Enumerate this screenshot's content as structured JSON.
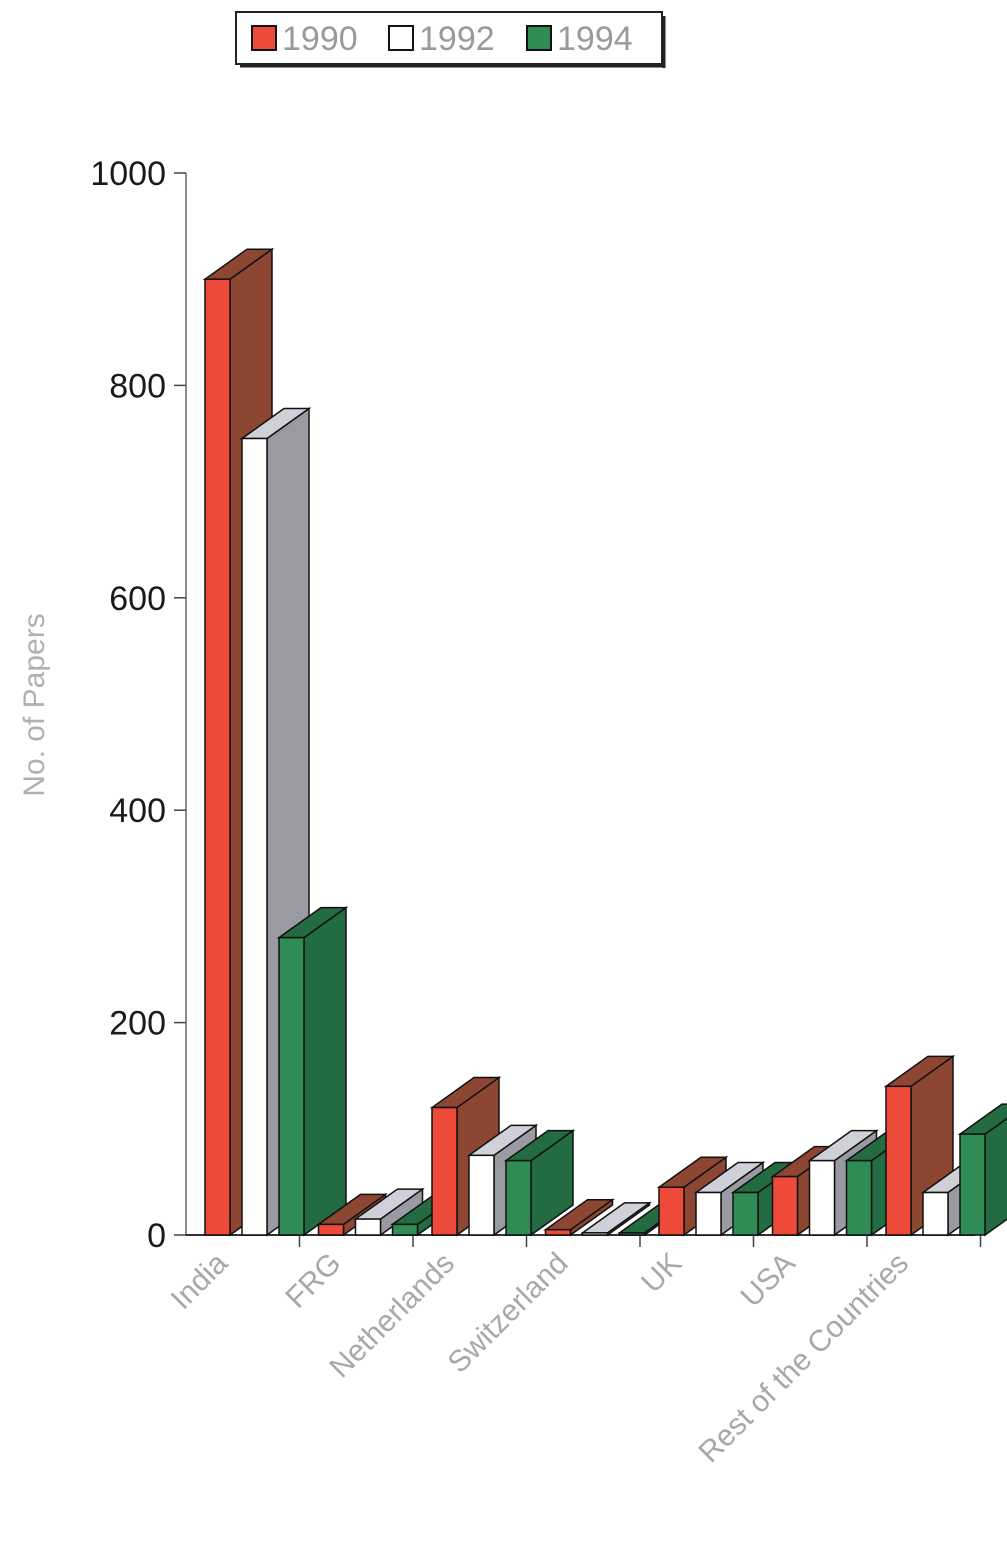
{
  "chart_data": {
    "type": "bar",
    "categories": [
      "India",
      "FRG",
      "Netherlands",
      "Switzerland",
      "UK",
      "USA",
      "Rest of the Countries"
    ],
    "series": [
      {
        "name": "1990",
        "values": [
          900,
          10,
          120,
          5,
          45,
          55,
          140
        ]
      },
      {
        "name": "1992",
        "values": [
          750,
          15,
          75,
          2,
          40,
          70,
          40
        ]
      },
      {
        "name": "1994",
        "values": [
          280,
          10,
          70,
          2,
          40,
          70,
          95
        ]
      }
    ],
    "title": "",
    "xlabel": "",
    "ylabel": "No. of Papers",
    "ylim": [
      0,
      1000
    ],
    "yticks": [
      "0",
      "200",
      "400",
      "600",
      "800",
      "1000"
    ],
    "legend": "top-center",
    "grid": false,
    "style": "3d-bar"
  },
  "colors": {
    "1990": "#ee4a3a",
    "1992": "#ffffff",
    "1994": "#2f8c55",
    "1990_side": "#8c4632",
    "1992_side": "#9a9aa2",
    "1994_side": "#236b40",
    "1992_top": "#d0d0d8"
  }
}
